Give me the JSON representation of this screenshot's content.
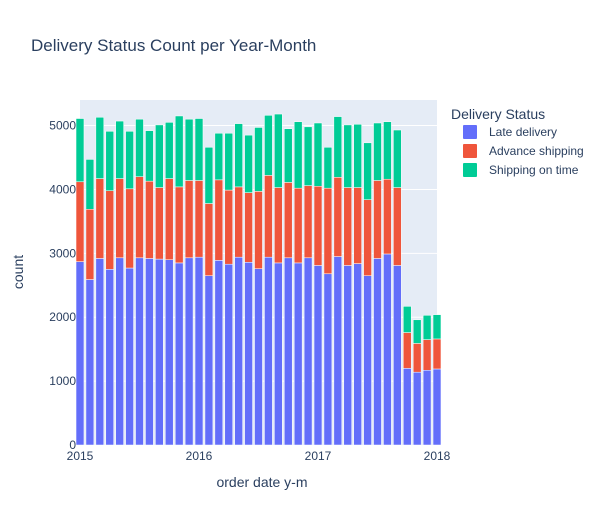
{
  "chart_data": {
    "type": "bar",
    "stacked": true,
    "title": "Delivery Status Count per Year-Month",
    "xlabel": "order date y-m",
    "ylabel": "count",
    "xlim": [
      "2015-01",
      "2018-01"
    ],
    "x_ticks": [
      "2015",
      "2016",
      "2017",
      "2018"
    ],
    "ylim": [
      0,
      5400
    ],
    "y_ticks": [
      0,
      1000,
      2000,
      3000,
      4000,
      5000
    ],
    "grid": true,
    "legend": {
      "title": "Delivery Status",
      "placement": "right"
    },
    "categories": [
      "2015-01",
      "2015-02",
      "2015-03",
      "2015-04",
      "2015-05",
      "2015-06",
      "2015-07",
      "2015-08",
      "2015-09",
      "2015-10",
      "2015-11",
      "2015-12",
      "2016-01",
      "2016-02",
      "2016-03",
      "2016-04",
      "2016-05",
      "2016-06",
      "2016-07",
      "2016-08",
      "2016-09",
      "2016-10",
      "2016-11",
      "2016-12",
      "2017-01",
      "2017-02",
      "2017-03",
      "2017-04",
      "2017-05",
      "2017-06",
      "2017-07",
      "2017-08",
      "2017-09",
      "2017-10",
      "2017-11",
      "2017-12",
      "2018-01"
    ],
    "series": [
      {
        "name": "Late delivery",
        "color": "#636efa",
        "values": [
          2870,
          2590,
          2920,
          2750,
          2930,
          2770,
          2930,
          2920,
          2910,
          2900,
          2850,
          2930,
          2940,
          2650,
          2890,
          2830,
          2940,
          2860,
          2760,
          2940,
          2850,
          2930,
          2850,
          2930,
          2810,
          2680,
          2950,
          2810,
          2840,
          2650,
          2920,
          2990,
          2810,
          1200,
          1140,
          1170,
          1190
        ]
      },
      {
        "name": "Advance shipping",
        "color": "#ef553b",
        "values": [
          1250,
          1100,
          1250,
          1230,
          1240,
          1240,
          1270,
          1210,
          1120,
          1270,
          1190,
          1210,
          1200,
          1130,
          1260,
          1160,
          1100,
          1090,
          1210,
          1280,
          1180,
          1180,
          1170,
          1130,
          1240,
          1340,
          1240,
          1220,
          1190,
          1190,
          1220,
          1170,
          1220,
          560,
          450,
          480,
          470
        ]
      },
      {
        "name": "Shipping on time",
        "color": "#00cc96",
        "values": [
          990,
          780,
          960,
          930,
          900,
          900,
          900,
          790,
          980,
          880,
          1110,
          960,
          970,
          880,
          730,
          890,
          990,
          900,
          1000,
          940,
          1150,
          840,
          1040,
          920,
          990,
          640,
          950,
          980,
          990,
          890,
          900,
          900,
          900,
          410,
          370,
          380,
          380
        ]
      }
    ]
  }
}
